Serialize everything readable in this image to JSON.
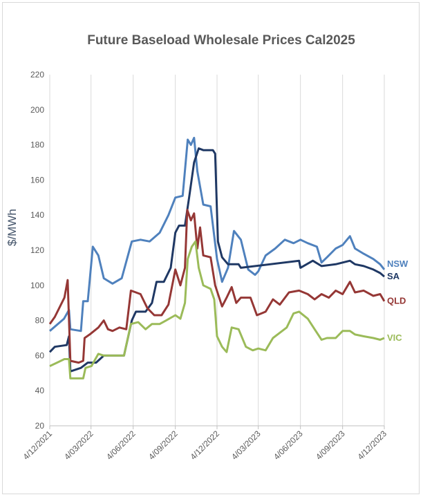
{
  "chart_data": {
    "type": "line",
    "title": "Future Baseload Wholesale Prices Cal2025",
    "xlabel": "",
    "ylabel": "$/MWh",
    "ylim": [
      20,
      220
    ],
    "ytick_step": 20,
    "xlim": [
      "4/12/2021",
      "4/12/2023"
    ],
    "x_ticks": [
      "4/12/2021",
      "4/03/2022",
      "4/06/2022",
      "4/09/2022",
      "4/12/2022",
      "4/03/2023",
      "4/06/2023",
      "4/09/2023",
      "4/12/2023"
    ],
    "grid": "vertical",
    "legend": "labels at right end of series",
    "colors": {
      "NSW": "#4f81bd",
      "SA": "#1f3864",
      "QLD": "#953735",
      "VIC": "#9bbb59"
    },
    "series": [
      {
        "name": "NSW",
        "points": [
          [
            "4/12/2021",
            74
          ],
          [
            "4/01/2022",
            81
          ],
          [
            "15/01/2022",
            86
          ],
          [
            "18/01/2022",
            75
          ],
          [
            "10/02/2022",
            74
          ],
          [
            "15/02/2022",
            91
          ],
          [
            "25/02/2022",
            91
          ],
          [
            "8/03/2022",
            122
          ],
          [
            "20/03/2022",
            117
          ],
          [
            "1/04/2022",
            104
          ],
          [
            "20/04/2022",
            101
          ],
          [
            "10/05/2022",
            104
          ],
          [
            "1/06/2022",
            125
          ],
          [
            "20/06/2022",
            126
          ],
          [
            "10/07/2022",
            125
          ],
          [
            "1/08/2022",
            130
          ],
          [
            "20/08/2022",
            140
          ],
          [
            "4/09/2022",
            150
          ],
          [
            "20/09/2022",
            151
          ],
          [
            "1/10/2022",
            183
          ],
          [
            "8/10/2022",
            180
          ],
          [
            "15/10/2022",
            184
          ],
          [
            "22/10/2022",
            165
          ],
          [
            "4/11/2022",
            146
          ],
          [
            "20/11/2022",
            145
          ],
          [
            "4/12/2022",
            115
          ],
          [
            "15/12/2022",
            102
          ],
          [
            "28/12/2022",
            110
          ],
          [
            "10/01/2023",
            131
          ],
          [
            "25/01/2023",
            126
          ],
          [
            "10/02/2023",
            109
          ],
          [
            "25/02/2023",
            106
          ],
          [
            "4/03/2023",
            108
          ],
          [
            "20/03/2023",
            117
          ],
          [
            "10/04/2023",
            121
          ],
          [
            "1/05/2023",
            126
          ],
          [
            "20/05/2023",
            124
          ],
          [
            "4/06/2023",
            126
          ],
          [
            "20/06/2023",
            124
          ],
          [
            "10/07/2023",
            122
          ],
          [
            "20/07/2023",
            113
          ],
          [
            "1/08/2023",
            116
          ],
          [
            "20/08/2023",
            121
          ],
          [
            "4/09/2023",
            123
          ],
          [
            "20/09/2023",
            128
          ],
          [
            "1/10/2023",
            121
          ],
          [
            "20/10/2023",
            118
          ],
          [
            "10/11/2023",
            115
          ],
          [
            "25/11/2023",
            112
          ],
          [
            "4/12/2023",
            109
          ]
        ]
      },
      {
        "name": "SA",
        "points": [
          [
            "4/12/2021",
            62
          ],
          [
            "15/12/2021",
            65
          ],
          [
            "10/01/2022",
            66
          ],
          [
            "15/01/2022",
            71
          ],
          [
            "18/01/2022",
            51
          ],
          [
            "10/02/2022",
            53
          ],
          [
            "25/02/2022",
            56
          ],
          [
            "15/03/2022",
            56
          ],
          [
            "1/04/2022",
            60
          ],
          [
            "1/05/2022",
            60
          ],
          [
            "15/05/2022",
            60
          ],
          [
            "1/06/2022",
            80
          ],
          [
            "10/06/2022",
            85
          ],
          [
            "1/07/2022",
            85
          ],
          [
            "15/07/2022",
            90
          ],
          [
            "25/07/2022",
            102
          ],
          [
            "10/08/2022",
            102
          ],
          [
            "25/08/2022",
            110
          ],
          [
            "4/09/2022",
            130
          ],
          [
            "12/09/2022",
            134
          ],
          [
            "25/09/2022",
            134
          ],
          [
            "4/10/2022",
            150
          ],
          [
            "15/10/2022",
            170
          ],
          [
            "25/10/2022",
            178
          ],
          [
            "4/11/2022",
            177
          ],
          [
            "25/11/2022",
            177
          ],
          [
            "30/11/2022",
            175
          ],
          [
            "6/12/2022",
            125
          ],
          [
            "15/12/2022",
            116
          ],
          [
            "28/12/2022",
            112
          ],
          [
            "20/01/2023",
            112
          ],
          [
            "25/01/2023",
            110
          ],
          [
            "4/06/2023",
            110
          ],
          [
            "1/06/2023",
            114
          ],
          [
            "1/07/2023",
            114
          ],
          [
            "20/07/2023",
            111
          ],
          [
            "20/08/2023",
            112
          ],
          [
            "20/09/2023",
            114
          ],
          [
            "1/10/2023",
            112
          ],
          [
            "20/10/2023",
            111
          ],
          [
            "10/11/2023",
            109
          ],
          [
            "25/11/2023",
            107
          ],
          [
            "4/12/2023",
            105
          ]
        ]
      },
      {
        "name": "QLD",
        "points": [
          [
            "4/12/2021",
            78
          ],
          [
            "15/12/2021",
            82
          ],
          [
            "5/01/2022",
            93
          ],
          [
            "12/01/2022",
            103
          ],
          [
            "18/01/2022",
            57
          ],
          [
            "5/02/2022",
            56
          ],
          [
            "15/02/2022",
            57
          ],
          [
            "18/02/2022",
            70
          ],
          [
            "1/03/2022",
            72
          ],
          [
            "20/03/2022",
            76
          ],
          [
            "1/04/2022",
            80
          ],
          [
            "10/04/2022",
            75
          ],
          [
            "20/04/2022",
            74
          ],
          [
            "5/05/2022",
            76
          ],
          [
            "20/05/2022",
            75
          ],
          [
            "30/05/2022",
            97
          ],
          [
            "10/06/2022",
            96
          ],
          [
            "20/06/2022",
            95
          ],
          [
            "5/07/2022",
            87
          ],
          [
            "20/07/2022",
            83
          ],
          [
            "5/08/2022",
            83
          ],
          [
            "20/08/2022",
            89
          ],
          [
            "4/09/2022",
            109
          ],
          [
            "15/09/2022",
            100
          ],
          [
            "25/09/2022",
            110
          ],
          [
            "30/09/2022",
            143
          ],
          [
            "8/10/2022",
            137
          ],
          [
            "15/10/2022",
            141
          ],
          [
            "22/10/2022",
            121
          ],
          [
            "28/10/2022",
            133
          ],
          [
            "4/11/2022",
            117
          ],
          [
            "20/11/2022",
            116
          ],
          [
            "30/11/2022",
            100
          ],
          [
            "15/12/2022",
            88
          ],
          [
            "25/12/2022",
            93
          ],
          [
            "5/01/2023",
            99
          ],
          [
            "15/01/2023",
            90
          ],
          [
            "25/01/2023",
            93
          ],
          [
            "15/02/2023",
            93
          ],
          [
            "1/03/2023",
            83
          ],
          [
            "20/03/2023",
            85
          ],
          [
            "5/04/2023",
            92
          ],
          [
            "20/04/2023",
            89
          ],
          [
            "10/05/2023",
            96
          ],
          [
            "1/06/2023",
            97
          ],
          [
            "20/06/2023",
            95
          ],
          [
            "5/07/2023",
            92
          ],
          [
            "20/07/2023",
            95
          ],
          [
            "5/08/2023",
            93
          ],
          [
            "20/08/2023",
            97
          ],
          [
            "4/09/2023",
            95
          ],
          [
            "20/09/2023",
            102
          ],
          [
            "1/10/2023",
            96
          ],
          [
            "20/10/2023",
            97
          ],
          [
            "10/11/2023",
            94
          ],
          [
            "25/11/2023",
            95
          ],
          [
            "4/12/2023",
            91
          ]
        ]
      },
      {
        "name": "VIC",
        "points": [
          [
            "4/12/2021",
            54
          ],
          [
            "20/12/2021",
            56
          ],
          [
            "5/01/2022",
            58
          ],
          [
            "15/01/2022",
            58
          ],
          [
            "18/01/2022",
            47
          ],
          [
            "5/02/2022",
            47
          ],
          [
            "15/02/2022",
            47
          ],
          [
            "20/02/2022",
            53
          ],
          [
            "5/03/2022",
            54
          ],
          [
            "20/03/2022",
            61
          ],
          [
            "1/04/2022",
            60
          ],
          [
            "20/04/2022",
            60
          ],
          [
            "15/05/2022",
            60
          ],
          [
            "30/05/2022",
            78
          ],
          [
            "15/06/2022",
            79
          ],
          [
            "1/07/2022",
            75
          ],
          [
            "15/07/2022",
            78
          ],
          [
            "1/08/2022",
            78
          ],
          [
            "15/08/2022",
            80
          ],
          [
            "4/09/2022",
            83
          ],
          [
            "15/09/2022",
            81
          ],
          [
            "25/09/2022",
            90
          ],
          [
            "1/10/2022",
            115
          ],
          [
            "10/10/2022",
            122
          ],
          [
            "18/10/2022",
            125
          ],
          [
            "25/10/2022",
            110
          ],
          [
            "4/11/2022",
            100
          ],
          [
            "20/11/2022",
            98
          ],
          [
            "28/11/2022",
            92
          ],
          [
            "4/12/2022",
            71
          ],
          [
            "15/12/2022",
            65
          ],
          [
            "25/12/2022",
            62
          ],
          [
            "5/01/2023",
            76
          ],
          [
            "20/01/2023",
            75
          ],
          [
            "5/02/2023",
            65
          ],
          [
            "20/02/2023",
            63
          ],
          [
            "4/03/2023",
            64
          ],
          [
            "20/03/2023",
            63
          ],
          [
            "5/04/2023",
            70
          ],
          [
            "20/04/2023",
            73
          ],
          [
            "5/05/2023",
            76
          ],
          [
            "20/05/2023",
            84
          ],
          [
            "1/06/2023",
            85
          ],
          [
            "20/06/2023",
            81
          ],
          [
            "5/07/2023",
            75
          ],
          [
            "20/07/2023",
            69
          ],
          [
            "1/08/2023",
            70
          ],
          [
            "20/08/2023",
            70
          ],
          [
            "4/09/2023",
            74
          ],
          [
            "20/09/2023",
            74
          ],
          [
            "1/10/2023",
            72
          ],
          [
            "20/10/2023",
            71
          ],
          [
            "10/11/2023",
            70
          ],
          [
            "25/11/2023",
            69
          ],
          [
            "4/12/2023",
            70
          ]
        ]
      }
    ]
  }
}
